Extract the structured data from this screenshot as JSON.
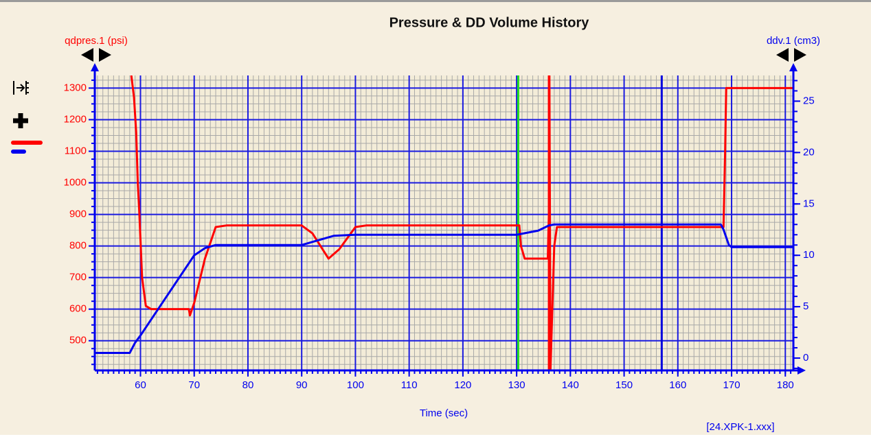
{
  "chart_data": {
    "type": "line",
    "title": "Pressure & DD Volume History",
    "xlabel": "Time (sec)",
    "ylabel": "qdpres.1 (psi)",
    "y2label": "ddv.1 (cm3)",
    "footnote": "[24.XPK-1.xxx]",
    "xlim": [
      51.5,
      181.5
    ],
    "xticks": [
      60,
      70,
      80,
      90,
      100,
      110,
      120,
      130,
      140,
      150,
      160,
      170,
      180
    ],
    "ylim": [
      406,
      1340
    ],
    "yticks": [
      500,
      600,
      700,
      800,
      900,
      1000,
      1100,
      1200,
      1300
    ],
    "y2lim": [
      -1.2,
      27.5
    ],
    "y2ticks": [
      0,
      5,
      10,
      15,
      20,
      25
    ],
    "grid": true,
    "markers": [
      {
        "x": 130.3,
        "color": "#22dd22"
      },
      {
        "x": 136,
        "color": "#ff0000"
      },
      {
        "x": 157,
        "color": "#0000dd"
      }
    ],
    "series": [
      {
        "name": "qdpres.1",
        "color": "#ff0000",
        "axis": "y",
        "x": [
          58.3,
          58.8,
          59.2,
          59.5,
          59.8,
          60.3,
          61,
          62,
          65,
          69,
          69.2,
          70,
          72,
          74,
          76,
          90,
          92,
          95,
          97,
          100,
          102,
          130.5,
          130.8,
          131.5,
          135.8,
          136,
          136.1,
          136.3,
          137,
          137.5,
          168.5,
          168.8,
          169,
          170,
          181.5
        ],
        "values": [
          1340,
          1270,
          1160,
          1000,
          900,
          700,
          610,
          600,
          600,
          600,
          580,
          620,
          760,
          860,
          865,
          865,
          840,
          760,
          790,
          860,
          865,
          865,
          800,
          760,
          760,
          900,
          1340,
          410,
          800,
          860,
          860,
          1100,
          1300,
          1300,
          1300
        ]
      },
      {
        "name": "ddv.1",
        "color": "#0000ee",
        "axis": "y2",
        "x": [
          51.5,
          58,
          59,
          60,
          70,
          72,
          74,
          90,
          92,
          96,
          100,
          130,
          131,
          134,
          136,
          137,
          168,
          168.5,
          169.5,
          170,
          181.5
        ],
        "values": [
          0.5,
          0.5,
          1.5,
          2.2,
          10,
          10.7,
          11,
          11,
          11.3,
          11.9,
          12,
          12,
          12.1,
          12.4,
          12.9,
          13,
          13,
          12.5,
          11,
          10.8,
          10.8
        ]
      }
    ]
  }
}
